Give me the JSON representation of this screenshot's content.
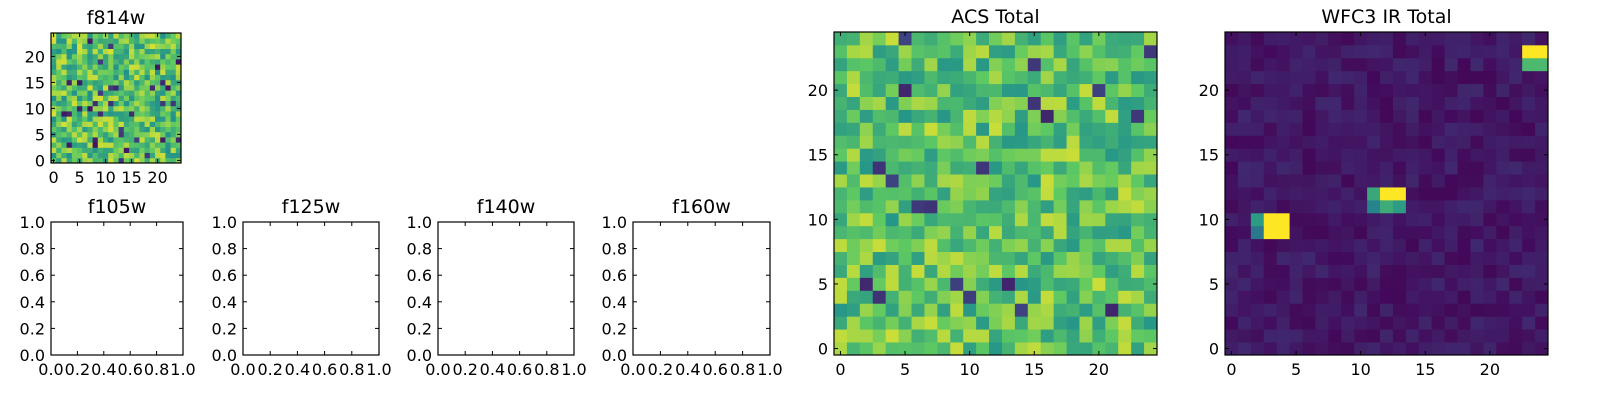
{
  "figure": {
    "colormap": "viridis",
    "viridis_stops": [
      "#440154",
      "#3b528b",
      "#21918c",
      "#5ec962",
      "#fde725"
    ]
  },
  "chart_data": [
    {
      "type": "heatmap",
      "title": "f814w",
      "grid_size": 25,
      "xlim": [
        0,
        25
      ],
      "ylim": [
        0,
        25
      ],
      "xticks": [
        0,
        5,
        10,
        15,
        20
      ],
      "yticks": [
        0,
        5,
        10,
        15,
        20
      ],
      "seed": 814,
      "base_value": 0.72,
      "noise_amplitude": 0.22,
      "low_outlier_probability": 0.04,
      "low_outlier_value": 0.05,
      "peaks": [],
      "color_range": [
        0,
        1
      ]
    },
    {
      "type": "empty",
      "title": "f105w",
      "xlim": [
        0,
        1
      ],
      "ylim": [
        0,
        1
      ],
      "xticks": [
        "0.0",
        "0.2",
        "0.4",
        "0.6",
        "0.8",
        "1.0"
      ],
      "yticks": [
        "0.0",
        "0.2",
        "0.4",
        "0.6",
        "0.8",
        "1.0"
      ]
    },
    {
      "type": "empty",
      "title": "f125w",
      "xlim": [
        0,
        1
      ],
      "ylim": [
        0,
        1
      ],
      "xticks": [
        "0.0",
        "0.2",
        "0.4",
        "0.6",
        "0.8",
        "1.0"
      ],
      "yticks": [
        "0.0",
        "0.2",
        "0.4",
        "0.6",
        "0.8",
        "1.0"
      ]
    },
    {
      "type": "empty",
      "title": "f140w",
      "xlim": [
        0,
        1
      ],
      "ylim": [
        0,
        1
      ],
      "xticks": [
        "0.0",
        "0.2",
        "0.4",
        "0.6",
        "0.8",
        "1.0"
      ],
      "yticks": [
        "0.0",
        "0.2",
        "0.4",
        "0.6",
        "0.8",
        "1.0"
      ]
    },
    {
      "type": "empty",
      "title": "f160w",
      "xlim": [
        0,
        1
      ],
      "ylim": [
        0,
        1
      ],
      "xticks": [
        "0.0",
        "0.2",
        "0.4",
        "0.6",
        "0.8",
        "1.0"
      ],
      "yticks": [
        "0.0",
        "0.2",
        "0.4",
        "0.6",
        "0.8",
        "1.0"
      ]
    },
    {
      "type": "heatmap",
      "title": "ACS Total",
      "grid_size": 25,
      "xlim": [
        0,
        25
      ],
      "ylim": [
        0,
        25
      ],
      "xticks": [
        0,
        5,
        10,
        15,
        20
      ],
      "yticks": [
        0,
        5,
        10,
        15,
        20
      ],
      "seed": 4242,
      "base_value": 0.72,
      "noise_amplitude": 0.2,
      "low_outlier_probability": 0.035,
      "low_outlier_value": 0.08,
      "peaks": [],
      "color_range": [
        0,
        1
      ]
    },
    {
      "type": "heatmap",
      "title": "WFC3 IR Total",
      "grid_size": 25,
      "xlim": [
        0,
        25
      ],
      "ylim": [
        0,
        25
      ],
      "xticks": [
        0,
        5,
        10,
        15,
        20
      ],
      "yticks": [
        0,
        5,
        10,
        15,
        20
      ],
      "seed": 3777,
      "base_value": 0.07,
      "noise_amplitude": 0.05,
      "low_outlier_probability": 0,
      "low_outlier_value": 0,
      "peaks": [
        {
          "x": 3,
          "y": 9,
          "value": 1.0
        },
        {
          "x": 4,
          "y": 9,
          "value": 1.0
        },
        {
          "x": 3,
          "y": 10,
          "value": 1.0
        },
        {
          "x": 4,
          "y": 10,
          "value": 1.0
        },
        {
          "x": 2,
          "y": 10,
          "value": 0.55
        },
        {
          "x": 2,
          "y": 9,
          "value": 0.4
        },
        {
          "x": 12,
          "y": 12,
          "value": 1.0
        },
        {
          "x": 13,
          "y": 12,
          "value": 1.0
        },
        {
          "x": 11,
          "y": 12,
          "value": 0.6
        },
        {
          "x": 12,
          "y": 11,
          "value": 0.62
        },
        {
          "x": 13,
          "y": 11,
          "value": 0.55
        },
        {
          "x": 11,
          "y": 11,
          "value": 0.45
        },
        {
          "x": 23,
          "y": 23,
          "value": 1.0
        },
        {
          "x": 24,
          "y": 23,
          "value": 1.0
        },
        {
          "x": 23,
          "y": 22,
          "value": 0.68
        },
        {
          "x": 24,
          "y": 22,
          "value": 0.68
        }
      ],
      "color_range": [
        0,
        1
      ]
    }
  ]
}
